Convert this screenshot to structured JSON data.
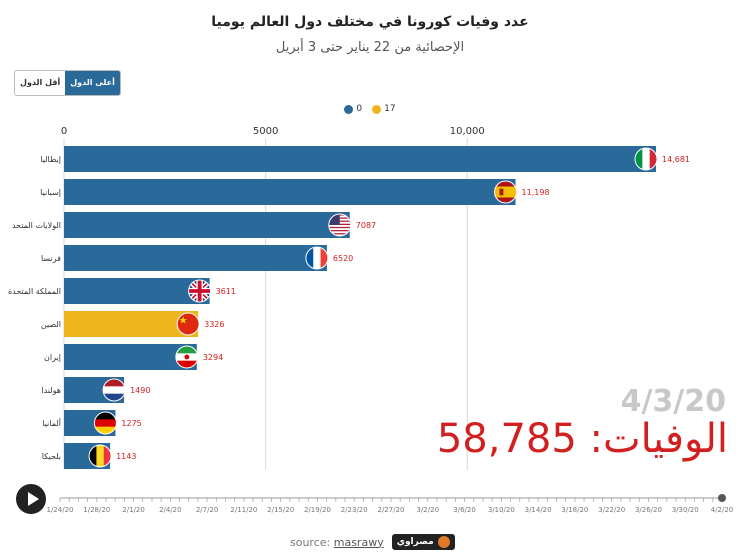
{
  "header": {
    "title": "عدد وفيات كورونا في مختلف دول العالم يوميا",
    "subtitle": "الإحصائية من 22 يناير حتى 3 أبريل"
  },
  "toggle": {
    "active_label": "أعلى الدول",
    "inactive_label": "أقل الدول"
  },
  "legend": [
    {
      "label": "0",
      "color": "#2a6a9b"
    },
    {
      "label": "17",
      "color": "#f0b41c"
    }
  ],
  "overlay": {
    "date": "4/3/20",
    "deaths": "الوفيات: 58,785"
  },
  "timeline": {
    "ticks": [
      "1/24/20",
      "1/28/20",
      "2/1/20",
      "2/4/20",
      "2/7/20",
      "2/11/20",
      "2/15/20",
      "2/19/20",
      "2/23/20",
      "2/27/20",
      "3/2/20",
      "3/6/20",
      "3/10/20",
      "3/14/20",
      "3/18/20",
      "3/22/20",
      "3/26/20",
      "3/30/20",
      "4/2/20"
    ]
  },
  "footer": {
    "source_prefix": "source:",
    "source_name": "masrawy",
    "brand": "مصراوي"
  },
  "chart_data": {
    "type": "bar",
    "orientation": "horizontal",
    "xlim": [
      0,
      14681
    ],
    "xticks": [
      0,
      5000,
      10000
    ],
    "xtick_labels": [
      "0",
      "5000",
      "10,000"
    ],
    "categories": [
      "إيطاليا",
      "إسبانيا",
      "الولايات المتحد",
      "فرنسا",
      "المملكة المتحدة",
      "الصين",
      "إيران",
      "هولندا",
      "ألمانيا",
      "بلجيكا"
    ],
    "values": [
      14681,
      11198,
      7087,
      6520,
      3611,
      3326,
      3294,
      1490,
      1275,
      1143
    ],
    "value_labels": [
      "14,681",
      "11,198",
      "7087",
      "6520",
      "3611",
      "3326",
      "3294",
      "1490",
      "1275",
      "1143"
    ],
    "bar_colors": [
      "#2a6a9b",
      "#2a6a9b",
      "#2a6a9b",
      "#2a6a9b",
      "#2a6a9b",
      "#f0b41c",
      "#2a6a9b",
      "#2a6a9b",
      "#2a6a9b",
      "#2a6a9b"
    ],
    "flags": [
      "italy-flag",
      "spain-flag",
      "usa-flag",
      "france-flag",
      "uk-flag",
      "china-flag",
      "iran-flag",
      "netherlands-flag",
      "germany-flag",
      "belgium-flag"
    ],
    "grid": true,
    "label_color": "#d21f1f"
  }
}
